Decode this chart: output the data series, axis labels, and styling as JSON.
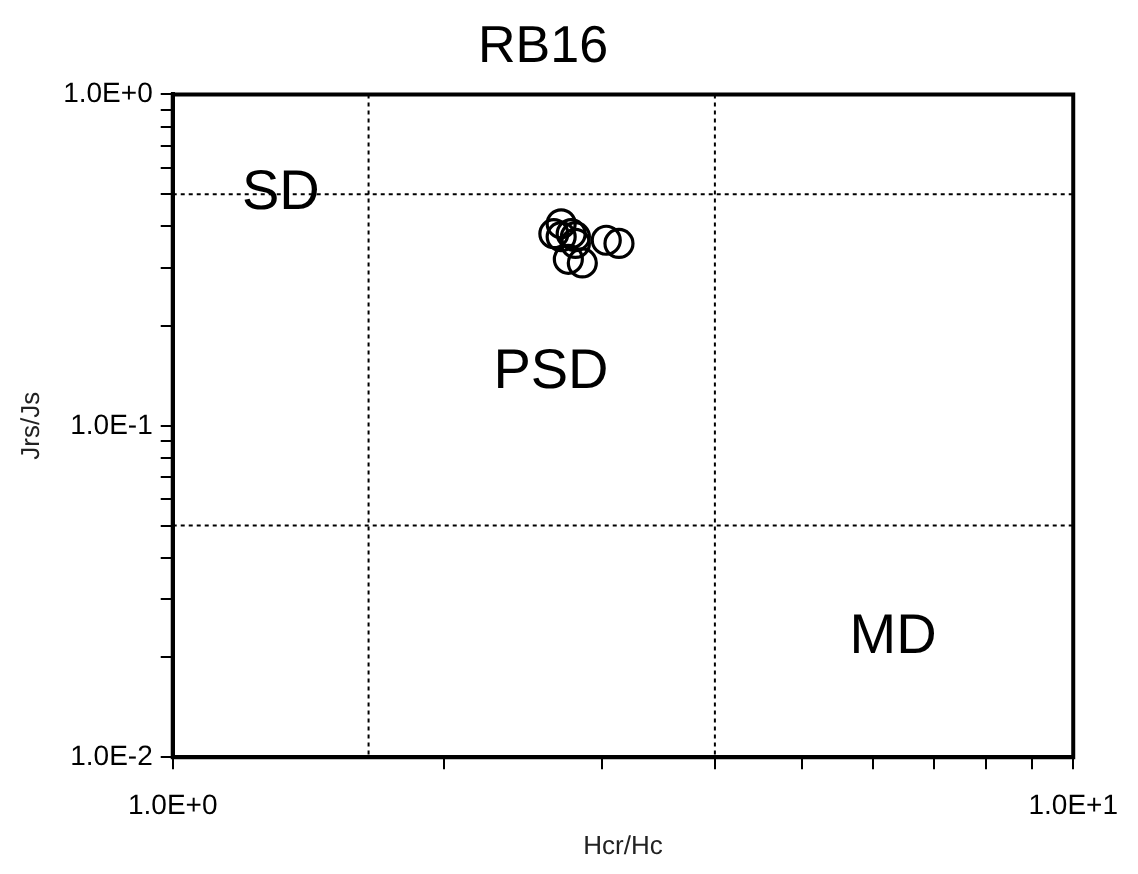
{
  "chart_data": {
    "type": "scatter",
    "title": "RB16",
    "xlabel": "Hcr/Hc",
    "ylabel": "Jrs/Js",
    "log": "xy",
    "grid": false,
    "legend": false,
    "marker": "circle",
    "xlim": [
      1,
      10
    ],
    "ylim": [
      0.01,
      1
    ],
    "xticks": [
      {
        "value": 1,
        "label": "1.0E+0"
      },
      {
        "value": 2,
        "label": null
      },
      {
        "value": 3,
        "label": null
      },
      {
        "value": 4,
        "label": null
      },
      {
        "value": 5,
        "label": null
      },
      {
        "value": 6,
        "label": null
      },
      {
        "value": 7,
        "label": null
      },
      {
        "value": 8,
        "label": null
      },
      {
        "value": 9,
        "label": null
      },
      {
        "value": 10,
        "label": "1.0E+1"
      }
    ],
    "yticks": [
      {
        "value": 0.01,
        "label": "1.0E-2"
      },
      {
        "value": 0.02,
        "label": null
      },
      {
        "value": 0.03,
        "label": null
      },
      {
        "value": 0.04,
        "label": null
      },
      {
        "value": 0.05,
        "label": null
      },
      {
        "value": 0.06,
        "label": null
      },
      {
        "value": 0.07,
        "label": null
      },
      {
        "value": 0.08,
        "label": null
      },
      {
        "value": 0.09,
        "label": null
      },
      {
        "value": 0.1,
        "label": "1.0E-1"
      },
      {
        "value": 0.2,
        "label": null
      },
      {
        "value": 0.3,
        "label": null
      },
      {
        "value": 0.4,
        "label": null
      },
      {
        "value": 0.5,
        "label": null
      },
      {
        "value": 0.6,
        "label": null
      },
      {
        "value": 0.7,
        "label": null
      },
      {
        "value": 0.8,
        "label": null
      },
      {
        "value": 0.9,
        "label": null
      },
      {
        "value": 1,
        "label": "1.0E+0"
      }
    ],
    "series": [
      {
        "color": "#000000",
        "x": [
          2.65,
          2.7,
          2.77,
          2.8,
          2.85,
          2.75,
          3.03,
          3.13,
          2.7,
          2.8
        ],
        "values": [
          0.38,
          0.407,
          0.38,
          0.355,
          0.31,
          0.318,
          0.363,
          0.355,
          0.372,
          0.372
        ]
      }
    ],
    "ref_lines": [
      {
        "axis": "x",
        "value": 1.65,
        "label": null,
        "line_style": "dotted",
        "color": "#000000"
      },
      {
        "axis": "x",
        "value": 4,
        "label": null,
        "line_style": "dotted",
        "color": "#000000"
      },
      {
        "axis": "y",
        "value": 0.5,
        "label": null,
        "line_style": "dotted",
        "color": "#000000"
      },
      {
        "axis": "y",
        "value": 0.05,
        "label": null,
        "line_style": "dotted",
        "color": "#000000"
      }
    ],
    "annotations": [
      "SD",
      "PSD",
      "MD"
    ]
  }
}
